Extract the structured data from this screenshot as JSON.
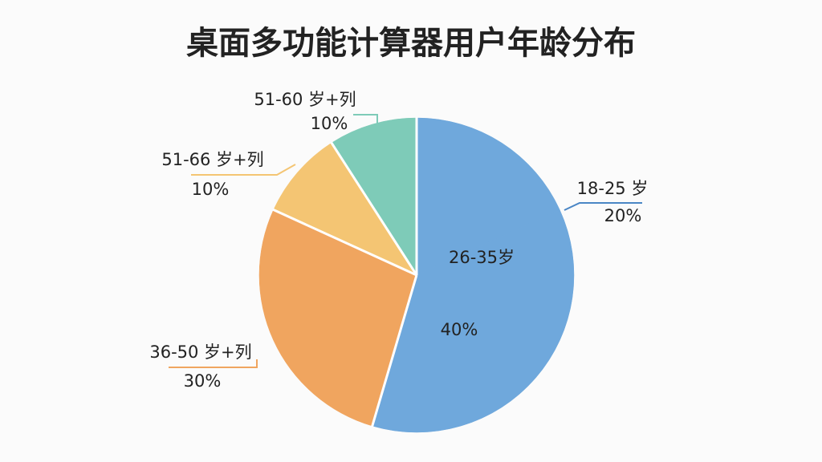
{
  "chart_data": {
    "type": "pie",
    "title": "桌面多功能计算器用户年龄分布",
    "categories": [
      "18-25 岁",
      "26-35岁",
      "36-50 岁+列",
      "51-66 岁+列",
      "51-60 岁+列"
    ],
    "values": [
      20,
      40,
      30,
      10,
      10
    ],
    "value_labels": [
      "20%",
      "40%",
      "30%",
      "10%",
      "10%"
    ],
    "colors": [
      "#6fa8dc",
      "#6fa8dc",
      "#f0a55f",
      "#f4c573",
      "#7ecbb8"
    ]
  }
}
